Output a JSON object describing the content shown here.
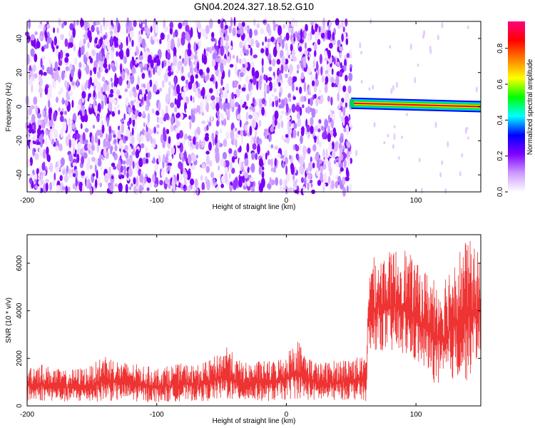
{
  "title": "GN04.2024.327.18.52.G10",
  "chart_data": [
    {
      "type": "heatmap",
      "xlabel": "Height of straight line (km)",
      "ylabel": "Frequency (Hz)",
      "xlim": [
        -200,
        150
      ],
      "ylim": [
        -50,
        50
      ],
      "xticks": [
        "-200",
        "-100",
        "0",
        "100"
      ],
      "yticks": [
        "-40",
        "-20",
        "0",
        "20",
        "40"
      ],
      "colorbar": {
        "label": "Normalized spectral amplitude",
        "range": [
          0,
          0.95
        ],
        "ticks": [
          "0.0",
          "0.2",
          "0.4",
          "0.6",
          "0.8"
        ],
        "colormap": [
          "#ffffff",
          "#cc99ff",
          "#7f00ff",
          "#0000ff",
          "#00ffff",
          "#00ff00",
          "#ffff00",
          "#ff8000",
          "#ff0000",
          "#ff0080"
        ]
      },
      "noise_region": {
        "x_range": [
          -200,
          50
        ],
        "freq_range": [
          -50,
          50
        ],
        "amplitude_range": [
          0.0,
          0.15
        ]
      },
      "signal_band": {
        "x_range": [
          50,
          150
        ],
        "freq_start_hz": 2,
        "freq_end_hz": 0,
        "peak_amplitude": 0.9
      }
    },
    {
      "type": "line",
      "xlabel": "Height of straight line (km)",
      "ylabel": "SNR (10 * v/v)",
      "xlim": [
        -200,
        150
      ],
      "ylim": [
        0,
        7200
      ],
      "xticks": [
        "-200",
        "-100",
        "0",
        "100"
      ],
      "yticks": [
        "0",
        "2000",
        "4000",
        "6000"
      ],
      "color": "#ee3333",
      "envelope": [
        {
          "x": -200,
          "low": 150,
          "high": 1700
        },
        {
          "x": -190,
          "low": 200,
          "high": 1800
        },
        {
          "x": -180,
          "low": 200,
          "high": 1600
        },
        {
          "x": -170,
          "low": 150,
          "high": 1500
        },
        {
          "x": -160,
          "low": 150,
          "high": 1600
        },
        {
          "x": -150,
          "low": 150,
          "high": 1700
        },
        {
          "x": -140,
          "low": 200,
          "high": 2200
        },
        {
          "x": -130,
          "low": 200,
          "high": 1900
        },
        {
          "x": -120,
          "low": 200,
          "high": 1800
        },
        {
          "x": -110,
          "low": 150,
          "high": 1700
        },
        {
          "x": -100,
          "low": 150,
          "high": 1600
        },
        {
          "x": -90,
          "low": 150,
          "high": 1700
        },
        {
          "x": -80,
          "low": 200,
          "high": 1800
        },
        {
          "x": -70,
          "low": 200,
          "high": 1700
        },
        {
          "x": -60,
          "low": 200,
          "high": 1900
        },
        {
          "x": -50,
          "low": 250,
          "high": 2300
        },
        {
          "x": -45,
          "low": 250,
          "high": 2700
        },
        {
          "x": -40,
          "low": 200,
          "high": 2000
        },
        {
          "x": -30,
          "low": 200,
          "high": 1800
        },
        {
          "x": -20,
          "low": 200,
          "high": 1900
        },
        {
          "x": -10,
          "low": 200,
          "high": 1900
        },
        {
          "x": 0,
          "low": 250,
          "high": 2200
        },
        {
          "x": 8,
          "low": 300,
          "high": 2900
        },
        {
          "x": 15,
          "low": 250,
          "high": 2200
        },
        {
          "x": 25,
          "low": 200,
          "high": 1800
        },
        {
          "x": 35,
          "low": 200,
          "high": 1900
        },
        {
          "x": 45,
          "low": 250,
          "high": 2000
        },
        {
          "x": 55,
          "low": 250,
          "high": 2100
        },
        {
          "x": 62,
          "low": 200,
          "high": 2000
        },
        {
          "x": 63,
          "low": 1800,
          "high": 6200
        },
        {
          "x": 70,
          "low": 2400,
          "high": 6300
        },
        {
          "x": 80,
          "low": 2200,
          "high": 6500
        },
        {
          "x": 90,
          "low": 2100,
          "high": 6800
        },
        {
          "x": 100,
          "low": 1800,
          "high": 6000
        },
        {
          "x": 110,
          "low": 1300,
          "high": 5600
        },
        {
          "x": 120,
          "low": 500,
          "high": 5400
        },
        {
          "x": 130,
          "low": 1200,
          "high": 6400
        },
        {
          "x": 140,
          "low": 1000,
          "high": 7100
        },
        {
          "x": 150,
          "low": 2300,
          "high": 6300
        }
      ]
    }
  ]
}
